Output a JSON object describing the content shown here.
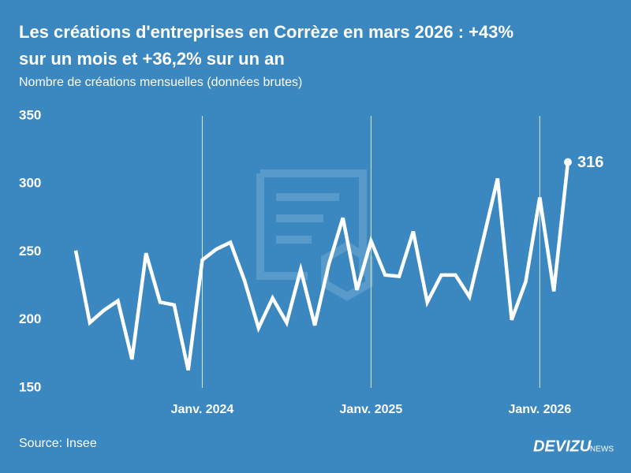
{
  "chart_data": {
    "type": "line",
    "title": [
      "Les créations d'entreprises en Corrèze en mars 2026 : +43%",
      "sur un mois et +36,2% sur un an"
    ],
    "subtitle": "Nombre de créations mensuelles (données brutes)",
    "categories": [
      null,
      null,
      null,
      null,
      null,
      null,
      null,
      null,
      null,
      "Janv. 2024",
      null,
      null,
      null,
      null,
      null,
      null,
      null,
      null,
      null,
      null,
      null,
      "Janv. 2025",
      null,
      null,
      null,
      null,
      null,
      null,
      null,
      null,
      null,
      null,
      null,
      "Janv. 2026",
      null,
      null
    ],
    "series": [
      {
        "name": "Créations",
        "color": "#ffffff",
        "values": [
          251,
          198,
          207,
          214,
          171,
          249,
          213,
          211,
          163,
          244,
          252,
          257,
          229,
          194,
          216,
          198,
          237,
          196,
          241,
          275,
          222,
          258,
          233,
          232,
          265,
          213,
          233,
          233,
          217,
          260,
          304,
          200,
          228,
          290,
          221,
          316
        ]
      }
    ],
    "ylim": [
      150,
      350
    ],
    "yticks": [
      150,
      200,
      250,
      300,
      350
    ],
    "source": "Source: Insee",
    "brand": "DEVIZU",
    "brand_suffix": "NEWS"
  }
}
